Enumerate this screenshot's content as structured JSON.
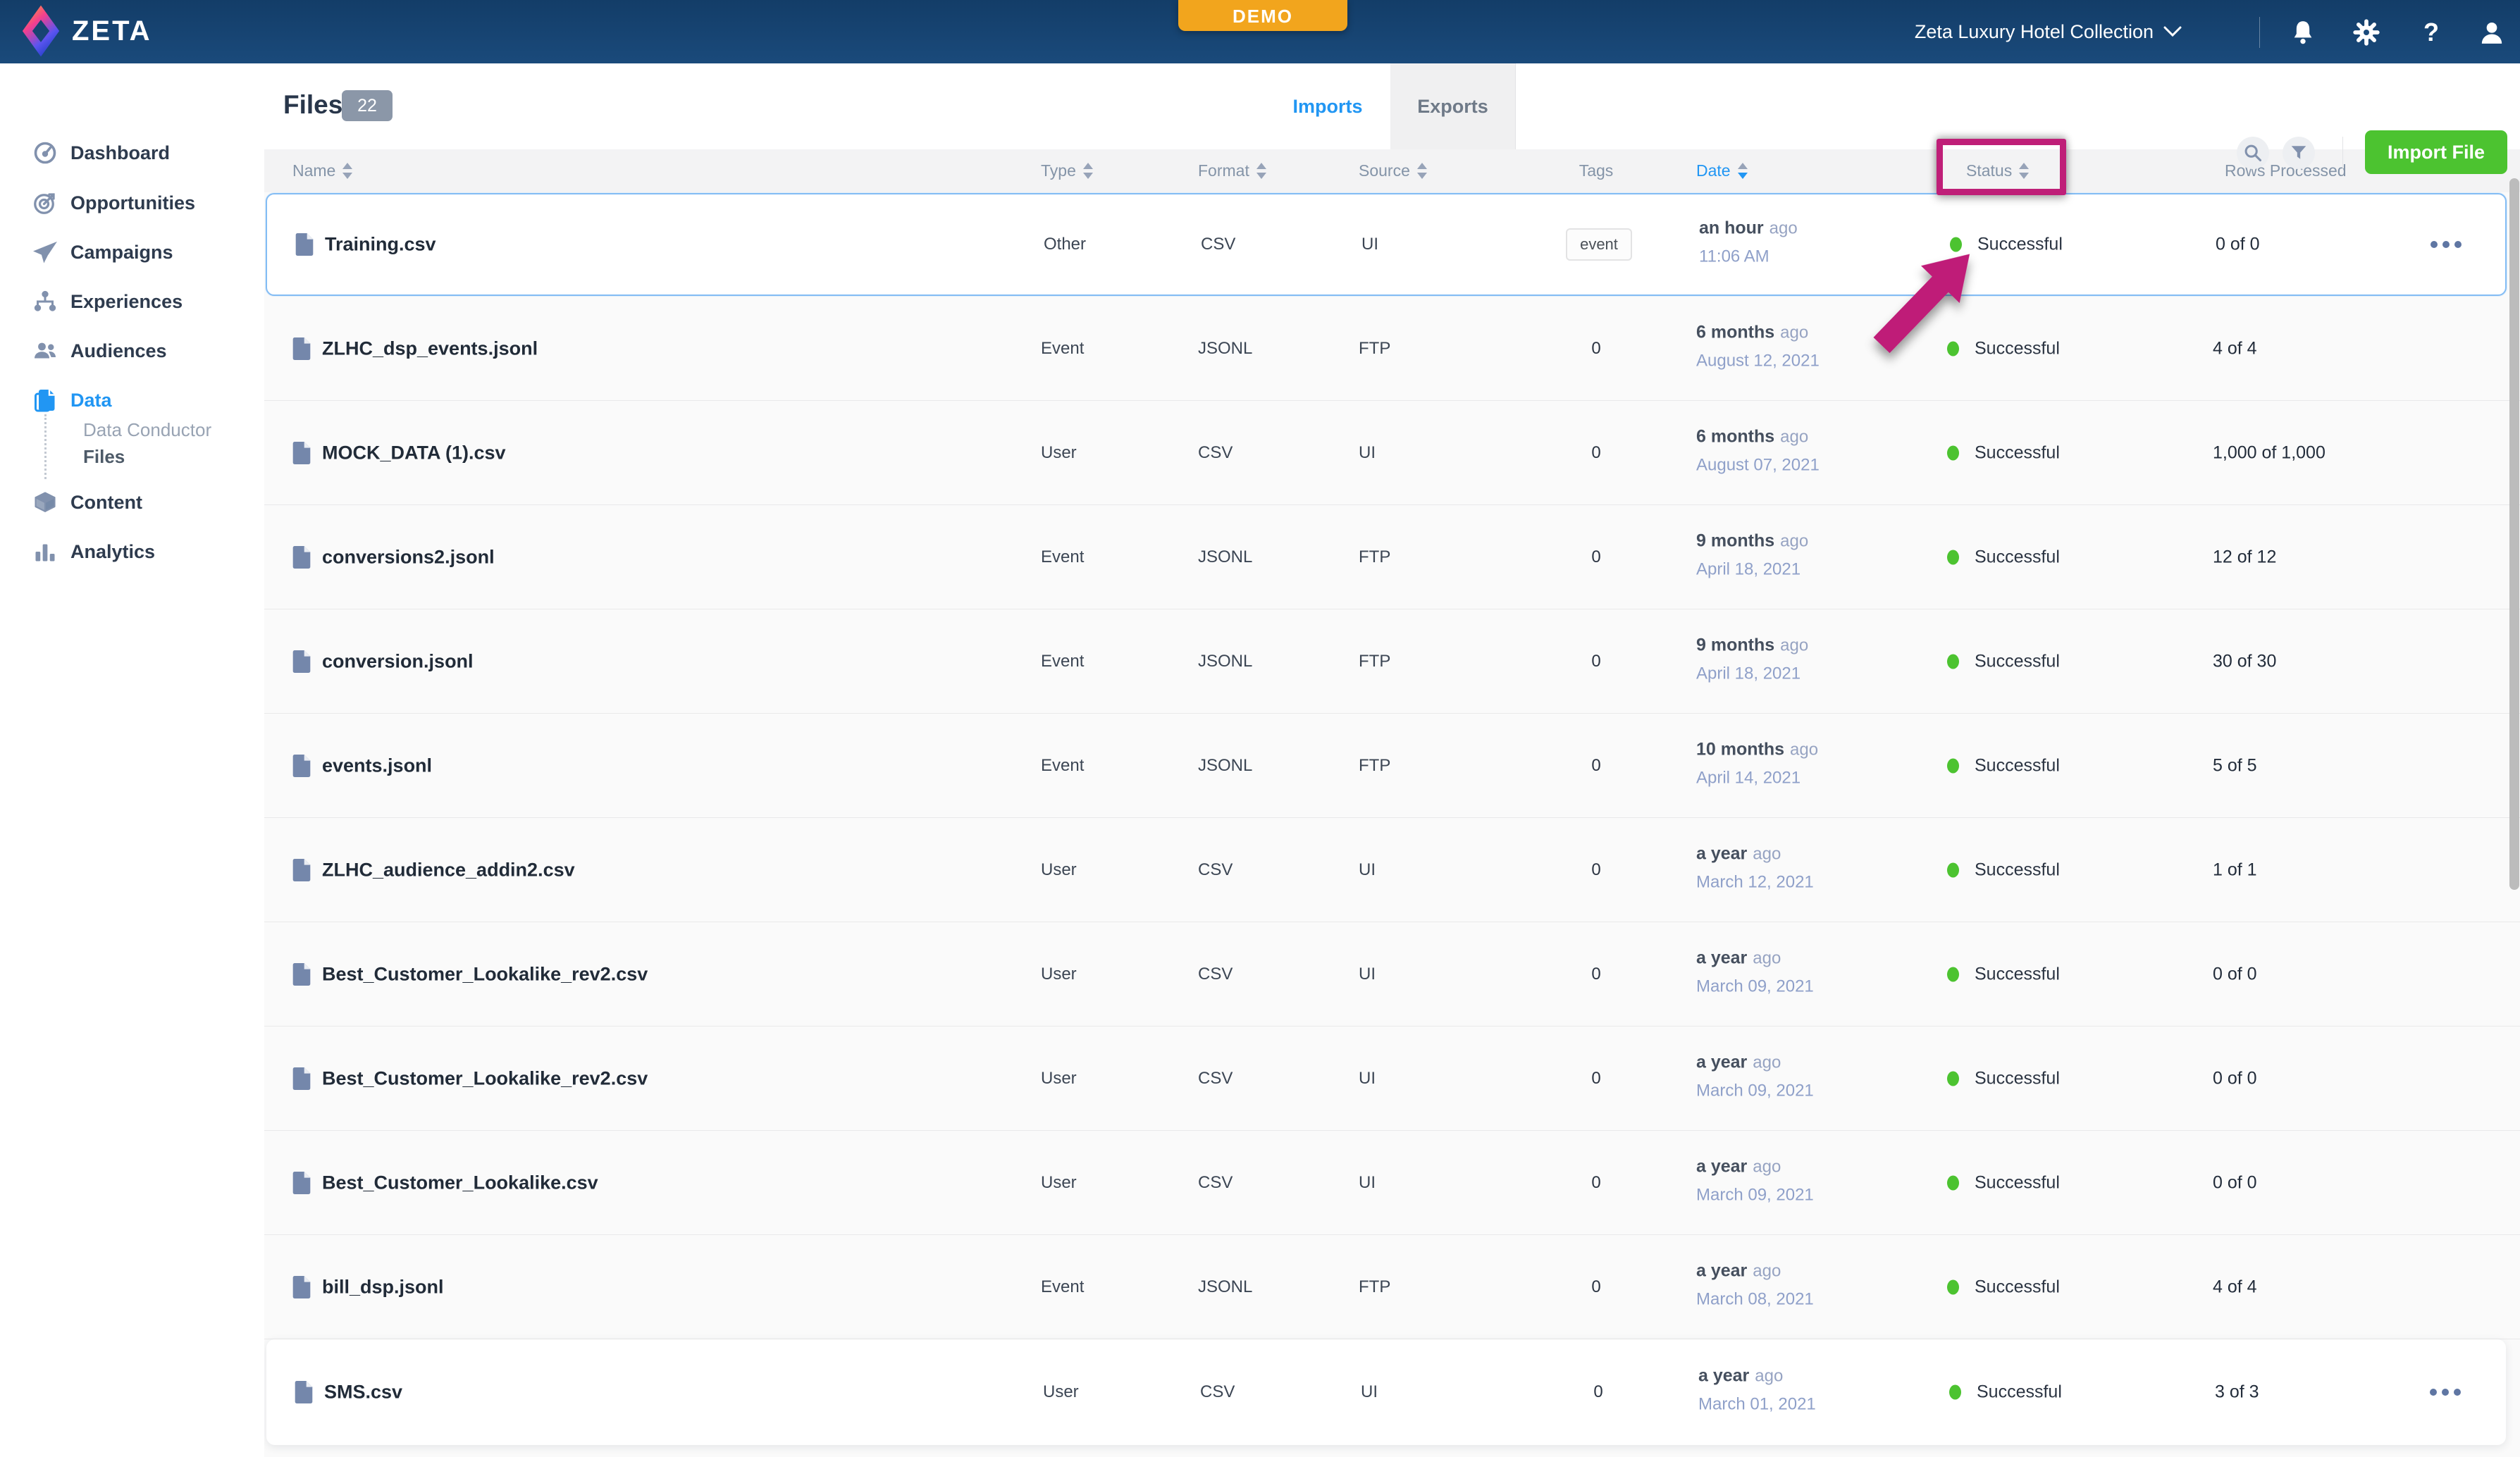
{
  "topbar": {
    "brand": "ZETA",
    "demo_label": "DEMO",
    "account_label": "Zeta Luxury Hotel Collection",
    "icons": [
      "notifications-icon",
      "settings-icon",
      "help-icon",
      "account-icon"
    ],
    "help_glyph": "?"
  },
  "sidebar": {
    "items": [
      {
        "label": "Dashboard",
        "icon": "dashboard-icon"
      },
      {
        "label": "Opportunities",
        "icon": "opportunities-icon"
      },
      {
        "label": "Campaigns",
        "icon": "campaigns-icon"
      },
      {
        "label": "Experiences",
        "icon": "experiences-icon"
      },
      {
        "label": "Audiences",
        "icon": "audiences-icon"
      },
      {
        "label": "Data",
        "icon": "data-icon",
        "active": true
      },
      {
        "label": "Content",
        "icon": "content-icon"
      },
      {
        "label": "Analytics",
        "icon": "analytics-icon"
      }
    ],
    "data_children": [
      {
        "label": "Data Conductor",
        "current": false
      },
      {
        "label": "Files",
        "current": true
      }
    ]
  },
  "header": {
    "title": "Files",
    "count": "22",
    "tabs": [
      {
        "label": "Imports",
        "active": true
      },
      {
        "label": "Exports",
        "active": false
      }
    ],
    "import_button": "Import File"
  },
  "table": {
    "ago_label": "ago",
    "columns": [
      {
        "label": "Name",
        "sortable": true
      },
      {
        "label": "Type",
        "sortable": true
      },
      {
        "label": "Format",
        "sortable": true
      },
      {
        "label": "Source",
        "sortable": true
      },
      {
        "label": "Tags",
        "sortable": false
      },
      {
        "label": "Date",
        "sortable": true,
        "sort_active": true
      },
      {
        "label": "Status",
        "sortable": true
      },
      {
        "label": "Rows Processed",
        "sortable": false
      }
    ],
    "rows": [
      {
        "name": "Training.csv",
        "type": "Other",
        "format": "CSV",
        "source": "UI",
        "tag": "event",
        "tag_pill": true,
        "date_rel": "an hour",
        "date_abs": "11:06 AM",
        "status": "Successful",
        "rows_processed": "0 of 0",
        "menu": true,
        "selected": true
      },
      {
        "name": "ZLHC_dsp_events.jsonl",
        "type": "Event",
        "format": "JSONL",
        "source": "FTP",
        "tag": "0",
        "date_rel": "6 months",
        "date_abs": "August 12, 2021",
        "status": "Successful",
        "rows_processed": "4 of 4"
      },
      {
        "name": "MOCK_DATA (1).csv",
        "type": "User",
        "format": "CSV",
        "source": "UI",
        "tag": "0",
        "date_rel": "6 months",
        "date_abs": "August 07, 2021",
        "status": "Successful",
        "rows_processed": "1,000 of 1,000"
      },
      {
        "name": "conversions2.jsonl",
        "type": "Event",
        "format": "JSONL",
        "source": "FTP",
        "tag": "0",
        "date_rel": "9 months",
        "date_abs": "April 18, 2021",
        "status": "Successful",
        "rows_processed": "12 of 12"
      },
      {
        "name": "conversion.jsonl",
        "type": "Event",
        "format": "JSONL",
        "source": "FTP",
        "tag": "0",
        "date_rel": "9 months",
        "date_abs": "April 18, 2021",
        "status": "Successful",
        "rows_processed": "30 of 30"
      },
      {
        "name": "events.jsonl",
        "type": "Event",
        "format": "JSONL",
        "source": "FTP",
        "tag": "0",
        "date_rel": "10 months",
        "date_abs": "April 14, 2021",
        "status": "Successful",
        "rows_processed": "5 of 5"
      },
      {
        "name": "ZLHC_audience_addin2.csv",
        "type": "User",
        "format": "CSV",
        "source": "UI",
        "tag": "0",
        "date_rel": "a year",
        "date_abs": "March 12, 2021",
        "status": "Successful",
        "rows_processed": "1 of 1"
      },
      {
        "name": "Best_Customer_Lookalike_rev2.csv",
        "type": "User",
        "format": "CSV",
        "source": "UI",
        "tag": "0",
        "date_rel": "a year",
        "date_abs": "March 09, 2021",
        "status": "Successful",
        "rows_processed": "0 of 0"
      },
      {
        "name": "Best_Customer_Lookalike_rev2.csv",
        "type": "User",
        "format": "CSV",
        "source": "UI",
        "tag": "0",
        "date_rel": "a year",
        "date_abs": "March 09, 2021",
        "status": "Successful",
        "rows_processed": "0 of 0"
      },
      {
        "name": "Best_Customer_Lookalike.csv",
        "type": "User",
        "format": "CSV",
        "source": "UI",
        "tag": "0",
        "date_rel": "a year",
        "date_abs": "March 09, 2021",
        "status": "Successful",
        "rows_processed": "0 of 0"
      },
      {
        "name": "bill_dsp.jsonl",
        "type": "Event",
        "format": "JSONL",
        "source": "FTP",
        "tag": "0",
        "date_rel": "a year",
        "date_abs": "March 08, 2021",
        "status": "Successful",
        "rows_processed": "4 of 4"
      },
      {
        "name": "SMS.csv",
        "type": "User",
        "format": "CSV",
        "source": "UI",
        "tag": "0",
        "date_rel": "a year",
        "date_abs": "March 01, 2021",
        "status": "Successful",
        "rows_processed": "3 of 3",
        "menu": true,
        "hover": true
      }
    ]
  },
  "annotations": {
    "highlighted_column": "Status",
    "color": "#bf1f78"
  },
  "colors": {
    "topbar": "#1a4a7b",
    "topbar2": "#133d68",
    "accent": "#2196f3",
    "green": "#4cc330",
    "magenta": "#bf1f78",
    "demo": "#f2a51d",
    "sidebar_icon": "#8191ad",
    "text_dark": "#212b38",
    "text_mid": "#3c4654",
    "muted": "#8494a8",
    "date_blue": "#8fa0c9",
    "row_bg": "#fafafa",
    "strip_bg": "#f3f3f4",
    "selected_border": "#83bcf4",
    "badge": "#8b97a8"
  }
}
